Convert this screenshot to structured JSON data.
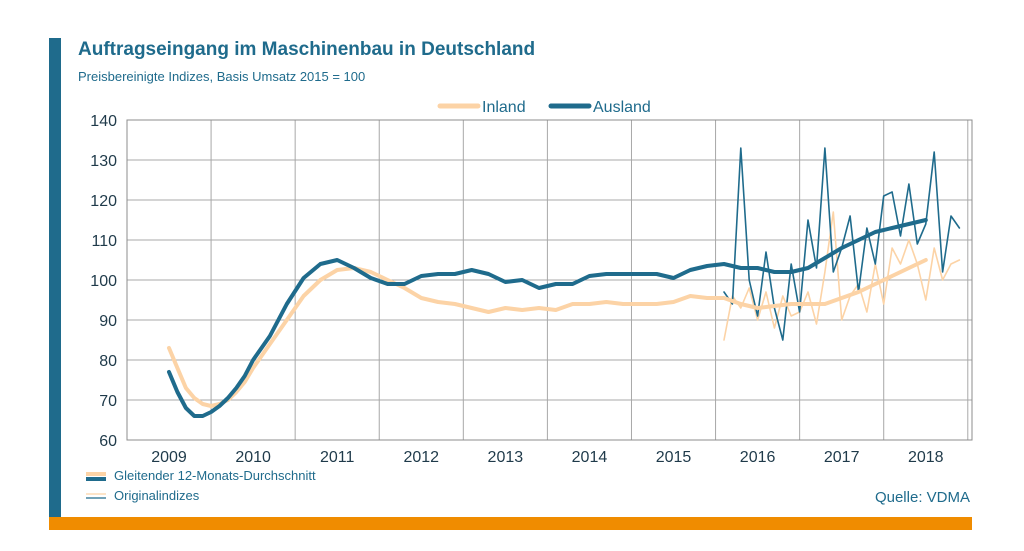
{
  "header": {
    "title": "Auftragseingang im Maschinenbau in Deutschland",
    "subtitle": "Preisbereinigte Indizes, Basis Umsatz 2015 = 100"
  },
  "footer": {
    "key_smoothed": "Gleitender 12-Monats-Durchschnitt",
    "key_original": "Originalindizes",
    "source": "Quelle: VDMA"
  },
  "colors": {
    "inland": "#fcd3a6",
    "ausland": "#1f6b8c",
    "accent_bar": "#f08c00",
    "brand": "#1f6b8c"
  },
  "chart_data": {
    "type": "line",
    "title": "Auftragseingang im Maschinenbau in Deutschland",
    "subtitle": "Preisbereinigte Indizes, Basis Umsatz 2015 = 100",
    "x_categories": [
      "2009",
      "2010",
      "2011",
      "2012",
      "2013",
      "2014",
      "2015",
      "2016",
      "2017",
      "2018"
    ],
    "ylim": [
      60,
      140
    ],
    "yticks": [
      60,
      70,
      80,
      90,
      100,
      110,
      120,
      130,
      140
    ],
    "grid": true,
    "legend": {
      "position": "top-center",
      "entries": [
        "Inland",
        "Ausland"
      ]
    },
    "series": [
      {
        "name": "Inland",
        "kind": "Gleitender 12-Monats-Durchschnitt",
        "color": "#fcd3a6",
        "x": [
          2009.0,
          2009.1,
          2009.2,
          2009.3,
          2009.4,
          2009.5,
          2009.6,
          2009.7,
          2009.8,
          2009.9,
          2010.0,
          2010.2,
          2010.4,
          2010.6,
          2010.8,
          2011.0,
          2011.2,
          2011.4,
          2011.6,
          2011.8,
          2012.0,
          2012.2,
          2012.4,
          2012.6,
          2012.8,
          2013.0,
          2013.2,
          2013.4,
          2013.6,
          2013.8,
          2014.0,
          2014.2,
          2014.4,
          2014.6,
          2014.8,
          2015.0,
          2015.2,
          2015.4,
          2015.6,
          2015.8,
          2016.0,
          2016.2,
          2016.4,
          2016.6,
          2016.8,
          2017.0,
          2017.2,
          2017.4,
          2017.6,
          2017.8,
          2018.0
        ],
        "values": [
          83,
          78,
          73,
          70.5,
          69,
          68.5,
          69,
          70,
          72,
          74.5,
          78,
          84,
          90,
          96,
          100,
          102.5,
          103,
          102,
          100,
          98,
          95.5,
          94.5,
          94,
          93,
          92,
          93,
          92.5,
          93,
          92.5,
          94,
          94,
          94.5,
          94,
          94,
          94,
          94.5,
          96,
          95.5,
          95.5,
          94,
          93,
          93.5,
          94,
          94,
          94,
          95.5,
          97,
          99,
          101,
          103,
          105
        ]
      },
      {
        "name": "Ausland",
        "kind": "Gleitender 12-Monats-Durchschnitt",
        "color": "#1f6b8c",
        "x": [
          2009.0,
          2009.1,
          2009.2,
          2009.3,
          2009.4,
          2009.5,
          2009.6,
          2009.7,
          2009.8,
          2009.9,
          2010.0,
          2010.2,
          2010.4,
          2010.6,
          2010.8,
          2011.0,
          2011.2,
          2011.4,
          2011.6,
          2011.8,
          2012.0,
          2012.2,
          2012.4,
          2012.6,
          2012.8,
          2013.0,
          2013.2,
          2013.4,
          2013.6,
          2013.8,
          2014.0,
          2014.2,
          2014.4,
          2014.6,
          2014.8,
          2015.0,
          2015.2,
          2015.4,
          2015.6,
          2015.8,
          2016.0,
          2016.2,
          2016.4,
          2016.6,
          2016.8,
          2017.0,
          2017.2,
          2017.4,
          2017.6,
          2017.8,
          2018.0
        ],
        "values": [
          77,
          72,
          68,
          66,
          66,
          67,
          68.5,
          70.5,
          73,
          76,
          80,
          86,
          94,
          100.5,
          104,
          105,
          103,
          100.5,
          99,
          99,
          101,
          101.5,
          101.5,
          102.5,
          101.5,
          99.5,
          100,
          98,
          99,
          99,
          101,
          101.5,
          101.5,
          101.5,
          101.5,
          100.5,
          102.5,
          103.5,
          104,
          103,
          103,
          102,
          102,
          103,
          105.5,
          108,
          110,
          112,
          113,
          114,
          115
        ]
      },
      {
        "name": "Inland",
        "kind": "Originalindizes",
        "color": "#fcd3a6",
        "x": [
          2015.6,
          2015.7,
          2015.8,
          2015.9,
          2016.0,
          2016.1,
          2016.2,
          2016.3,
          2016.4,
          2016.5,
          2016.6,
          2016.7,
          2016.8,
          2016.9,
          2017.0,
          2017.1,
          2017.2,
          2017.3,
          2017.4,
          2017.5,
          2017.6,
          2017.7,
          2017.8,
          2017.9,
          2018.0,
          2018.1,
          2018.2,
          2018.3,
          2018.4
        ],
        "values": [
          85,
          96,
          93,
          98,
          90,
          97,
          88,
          96,
          91,
          92,
          97,
          89,
          102,
          117,
          90,
          96,
          99,
          92,
          104,
          94,
          108,
          104,
          110,
          104,
          95,
          108,
          100,
          104,
          105
        ]
      },
      {
        "name": "Ausland",
        "kind": "Originalindizes",
        "color": "#1f6b8c",
        "x": [
          2015.6,
          2015.7,
          2015.8,
          2015.9,
          2016.0,
          2016.1,
          2016.2,
          2016.3,
          2016.4,
          2016.5,
          2016.6,
          2016.7,
          2016.8,
          2016.9,
          2017.0,
          2017.1,
          2017.2,
          2017.3,
          2017.4,
          2017.5,
          2017.6,
          2017.7,
          2017.8,
          2017.9,
          2018.0,
          2018.1,
          2018.2,
          2018.3,
          2018.4
        ],
        "values": [
          97,
          94,
          133,
          100,
          91,
          107,
          93,
          85,
          104,
          92,
          115,
          103,
          133,
          102,
          108,
          116,
          97,
          113,
          104,
          121,
          122,
          111,
          124,
          109,
          114,
          132,
          102,
          116,
          113
        ]
      }
    ]
  }
}
